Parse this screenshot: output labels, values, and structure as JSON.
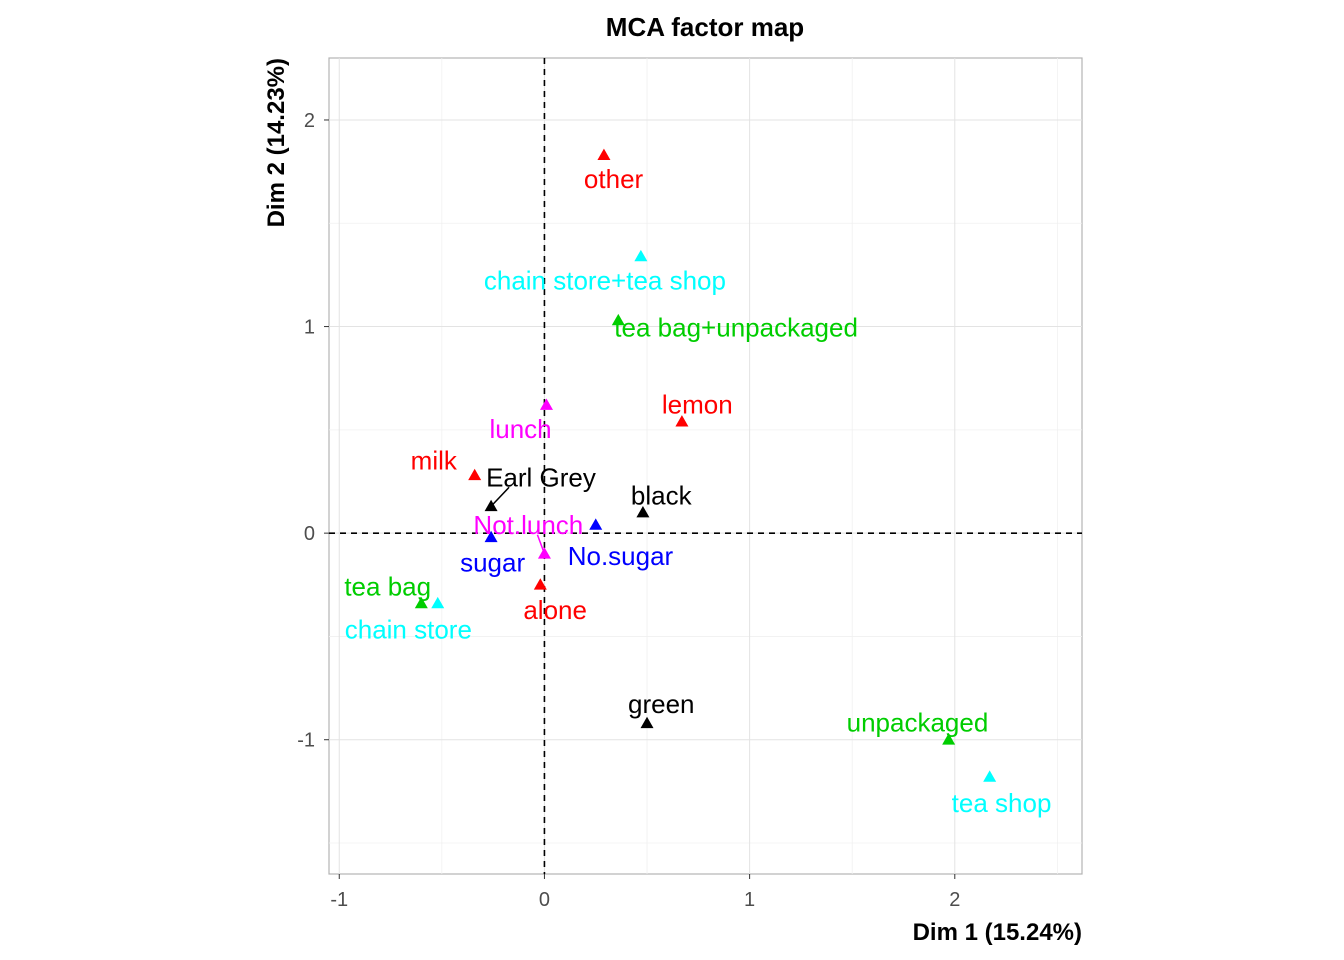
{
  "chart_data": {
    "type": "scatter",
    "title": "MCA factor map",
    "xlabel": "Dim 1 (15.24%)",
    "ylabel": "Dim 2 (14.23%)",
    "xlim": [
      -1.05,
      2.62
    ],
    "ylim": [
      -1.65,
      2.3
    ],
    "x_ticks": [
      -1,
      0,
      1,
      2
    ],
    "x_tick_labels": [
      "-1",
      "0",
      "1",
      "2"
    ],
    "y_ticks": [
      -1,
      0,
      1,
      2
    ],
    "y_tick_labels": [
      "-1",
      "0",
      "1",
      "2"
    ],
    "grid": true,
    "reference_lines": {
      "x": 0,
      "y": 0,
      "style": "dashed"
    },
    "marker": "triangle",
    "points": [
      {
        "label": "other",
        "x": 0.29,
        "y": 1.83,
        "color": "#ff0000"
      },
      {
        "label": "chain store+tea shop",
        "x": 0.47,
        "y": 1.34,
        "color": "#00ffff"
      },
      {
        "label": "tea bag+unpackaged",
        "x": 0.36,
        "y": 1.03,
        "color": "#00cd00"
      },
      {
        "label": "lemon",
        "x": 0.67,
        "y": 0.54,
        "color": "#ff0000"
      },
      {
        "label": "lunch",
        "x": 0.01,
        "y": 0.62,
        "color": "#ff00ff"
      },
      {
        "label": "milk",
        "x": -0.34,
        "y": 0.28,
        "color": "#ff0000"
      },
      {
        "label": "Earl Grey",
        "x": -0.26,
        "y": 0.13,
        "color": "#000000"
      },
      {
        "label": "black",
        "x": 0.48,
        "y": 0.1,
        "color": "#000000"
      },
      {
        "label": "Not.lunch",
        "x": 0.0,
        "y": -0.1,
        "color": "#ff00ff"
      },
      {
        "label": "No.sugar",
        "x": 0.25,
        "y": 0.04,
        "color": "#0000ff"
      },
      {
        "label": "sugar",
        "x": -0.26,
        "y": -0.02,
        "color": "#0000ff"
      },
      {
        "label": "alone",
        "x": -0.02,
        "y": -0.25,
        "color": "#ff0000"
      },
      {
        "label": "tea bag",
        "x": -0.6,
        "y": -0.34,
        "color": "#00cd00"
      },
      {
        "label": "chain store",
        "x": -0.52,
        "y": -0.34,
        "color": "#00ffff"
      },
      {
        "label": "green",
        "x": 0.5,
        "y": -0.92,
        "color": "#000000"
      },
      {
        "label": "unpackaged",
        "x": 1.97,
        "y": -1.0,
        "color": "#00cd00"
      },
      {
        "label": "tea shop",
        "x": 2.17,
        "y": -1.18,
        "color": "#00ffff"
      }
    ]
  }
}
